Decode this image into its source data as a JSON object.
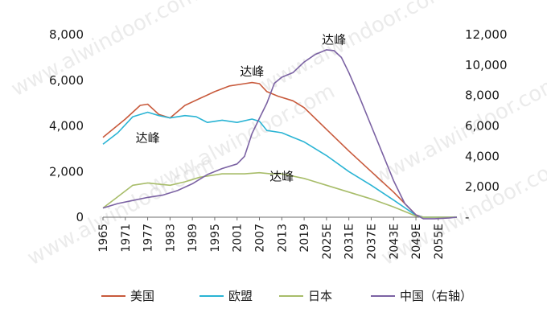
{
  "chart_data": {
    "type": "line",
    "x": [
      "1965",
      "1971",
      "1977",
      "1983",
      "1989",
      "1995",
      "2001",
      "2007",
      "2013",
      "2019",
      "2025E",
      "2031E",
      "2037E",
      "2043E",
      "2049E",
      "2055E"
    ],
    "ylim_left": [
      0,
      8000
    ],
    "ylim_right": [
      0,
      12000
    ],
    "yticks_left": [
      "0",
      "2,000",
      "4,000",
      "6,000",
      "8,000"
    ],
    "yticks_right": [
      "-",
      "2,000",
      "4,000",
      "6,000",
      "8,000",
      "10,000",
      "12,000"
    ],
    "series": [
      {
        "name": "美国",
        "axis": "left",
        "color": "#c85a3c",
        "points": [
          [
            1965,
            3500
          ],
          [
            1971,
            4300
          ],
          [
            1975,
            4900
          ],
          [
            1977,
            4950
          ],
          [
            1980,
            4500
          ],
          [
            1983,
            4350
          ],
          [
            1987,
            4900
          ],
          [
            1991,
            5200
          ],
          [
            1995,
            5500
          ],
          [
            1999,
            5750
          ],
          [
            2003,
            5850
          ],
          [
            2005,
            5900
          ],
          [
            2007,
            5850
          ],
          [
            2009,
            5500
          ],
          [
            2012,
            5300
          ],
          [
            2016,
            5100
          ],
          [
            2019,
            4800
          ],
          [
            2025,
            3850
          ],
          [
            2031,
            2900
          ],
          [
            2037,
            2000
          ],
          [
            2043,
            1100
          ],
          [
            2049,
            100
          ],
          [
            2051,
            0
          ],
          [
            2060,
            0
          ]
        ]
      },
      {
        "name": "欧盟",
        "axis": "left",
        "color": "#2ab4d4",
        "points": [
          [
            1965,
            3200
          ],
          [
            1969,
            3700
          ],
          [
            1973,
            4400
          ],
          [
            1977,
            4600
          ],
          [
            1980,
            4450
          ],
          [
            1983,
            4350
          ],
          [
            1987,
            4450
          ],
          [
            1990,
            4400
          ],
          [
            1993,
            4150
          ],
          [
            1997,
            4250
          ],
          [
            2001,
            4150
          ],
          [
            2005,
            4300
          ],
          [
            2007,
            4200
          ],
          [
            2009,
            3800
          ],
          [
            2013,
            3700
          ],
          [
            2016,
            3500
          ],
          [
            2019,
            3300
          ],
          [
            2025,
            2700
          ],
          [
            2031,
            2000
          ],
          [
            2037,
            1400
          ],
          [
            2043,
            750
          ],
          [
            2049,
            80
          ],
          [
            2051,
            0
          ],
          [
            2060,
            0
          ]
        ]
      },
      {
        "name": "日本",
        "axis": "left",
        "color": "#a8bd6a",
        "points": [
          [
            1965,
            400
          ],
          [
            1969,
            900
          ],
          [
            1973,
            1400
          ],
          [
            1977,
            1500
          ],
          [
            1980,
            1450
          ],
          [
            1983,
            1400
          ],
          [
            1987,
            1550
          ],
          [
            1991,
            1750
          ],
          [
            1997,
            1900
          ],
          [
            2003,
            1900
          ],
          [
            2007,
            1950
          ],
          [
            2010,
            1900
          ],
          [
            2013,
            1900
          ],
          [
            2019,
            1700
          ],
          [
            2025,
            1400
          ],
          [
            2031,
            1100
          ],
          [
            2037,
            800
          ],
          [
            2043,
            450
          ],
          [
            2049,
            50
          ],
          [
            2051,
            0
          ],
          [
            2060,
            0
          ]
        ]
      },
      {
        "name": "中国（右轴）",
        "axis": "right",
        "color": "#7b62a3",
        "points": [
          [
            1965,
            600
          ],
          [
            1969,
            900
          ],
          [
            1973,
            1100
          ],
          [
            1977,
            1300
          ],
          [
            1981,
            1450
          ],
          [
            1985,
            1750
          ],
          [
            1989,
            2200
          ],
          [
            1993,
            2800
          ],
          [
            1997,
            3200
          ],
          [
            2001,
            3500
          ],
          [
            2003,
            4000
          ],
          [
            2005,
            5500
          ],
          [
            2007,
            6500
          ],
          [
            2009,
            7500
          ],
          [
            2011,
            8800
          ],
          [
            2013,
            9200
          ],
          [
            2016,
            9500
          ],
          [
            2019,
            10200
          ],
          [
            2022,
            10700
          ],
          [
            2025,
            11000
          ],
          [
            2027,
            10950
          ],
          [
            2029,
            10500
          ],
          [
            2031,
            9500
          ],
          [
            2034,
            7800
          ],
          [
            2037,
            6000
          ],
          [
            2040,
            4200
          ],
          [
            2043,
            2400
          ],
          [
            2046,
            900
          ],
          [
            2049,
            150
          ],
          [
            2051,
            -100
          ],
          [
            2054,
            -100
          ],
          [
            2058,
            -50
          ],
          [
            2060,
            0
          ]
        ]
      }
    ],
    "annotations": [
      {
        "text": "达峰",
        "x": 1977,
        "y": 3300,
        "axis": "left"
      },
      {
        "text": "达峰",
        "x": 2005,
        "y": 6200,
        "axis": "left"
      },
      {
        "text": "达峰",
        "x": 2013,
        "y": 1600,
        "axis": "left"
      },
      {
        "text": "达峰",
        "x": 2027,
        "y": 11400,
        "axis": "right"
      }
    ],
    "legend": "bottom"
  },
  "watermark": "www.alwindoor.com"
}
